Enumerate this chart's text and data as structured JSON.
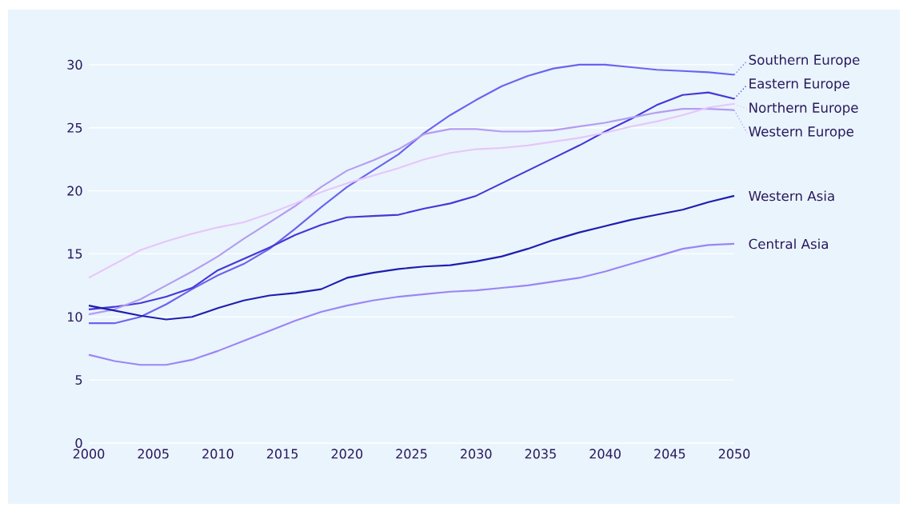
{
  "chart_data": {
    "type": "line",
    "x": [
      2000,
      2002,
      2004,
      2006,
      2008,
      2010,
      2012,
      2014,
      2016,
      2018,
      2020,
      2022,
      2024,
      2026,
      2028,
      2030,
      2032,
      2034,
      2036,
      2038,
      2040,
      2042,
      2044,
      2046,
      2048,
      2050
    ],
    "xlim": [
      2000,
      2050
    ],
    "xticks": [
      2000,
      2005,
      2010,
      2015,
      2020,
      2025,
      2030,
      2035,
      2040,
      2045,
      2050
    ],
    "ylim": [
      0,
      30
    ],
    "yticks": [
      0,
      5,
      10,
      15,
      20,
      25,
      30
    ],
    "grid": "y",
    "legend": "right",
    "series": [
      {
        "name": "Southern Europe",
        "color": "#6b63f0",
        "values": [
          9.5,
          9.5,
          10.0,
          11.0,
          12.2,
          13.3,
          14.2,
          15.4,
          17.0,
          18.7,
          20.3,
          21.6,
          22.9,
          24.6,
          26.0,
          27.2,
          28.3,
          29.1,
          29.7,
          30.0,
          30.0,
          29.8,
          29.6,
          29.5,
          29.4,
          29.2
        ]
      },
      {
        "name": "Eastern Europe",
        "color": "#4338d8",
        "values": [
          10.6,
          10.8,
          11.1,
          11.6,
          12.3,
          13.7,
          14.6,
          15.5,
          16.5,
          17.3,
          17.9,
          18.0,
          18.1,
          18.6,
          19.0,
          19.6,
          20.6,
          21.6,
          22.6,
          23.6,
          24.7,
          25.7,
          26.8,
          27.6,
          27.8,
          27.3
        ]
      },
      {
        "name": "Western Europe",
        "color": "#b49cf2",
        "values": [
          10.2,
          10.6,
          11.4,
          12.5,
          13.6,
          14.8,
          16.2,
          17.5,
          18.8,
          20.3,
          21.6,
          22.4,
          23.3,
          24.5,
          24.9,
          24.9,
          24.7,
          24.7,
          24.8,
          25.1,
          25.4,
          25.8,
          26.2,
          26.5,
          26.5,
          26.4
        ]
      },
      {
        "name": "Northern Europe",
        "color": "#e6c6fb",
        "values": [
          13.1,
          14.2,
          15.3,
          16.0,
          16.6,
          17.1,
          17.5,
          18.2,
          19.0,
          19.9,
          20.6,
          21.2,
          21.8,
          22.5,
          23.0,
          23.3,
          23.4,
          23.6,
          23.9,
          24.2,
          24.6,
          25.1,
          25.5,
          26.0,
          26.6,
          26.9
        ]
      },
      {
        "name": "Western Asia",
        "color": "#1e1eb0",
        "values": [
          10.9,
          10.5,
          10.1,
          9.8,
          10.0,
          10.7,
          11.3,
          11.7,
          11.9,
          12.2,
          13.1,
          13.5,
          13.8,
          14.0,
          14.1,
          14.4,
          14.8,
          15.4,
          16.1,
          16.7,
          17.2,
          17.7,
          18.1,
          18.5,
          19.1,
          19.6
        ]
      },
      {
        "name": "Central Asia",
        "color": "#9b85f7",
        "values": [
          7.0,
          6.5,
          6.2,
          6.2,
          6.6,
          7.3,
          8.1,
          8.9,
          9.7,
          10.4,
          10.9,
          11.3,
          11.6,
          11.8,
          12.0,
          12.1,
          12.3,
          12.5,
          12.8,
          13.1,
          13.6,
          14.2,
          14.8,
          15.4,
          15.7,
          15.8
        ]
      }
    ]
  }
}
